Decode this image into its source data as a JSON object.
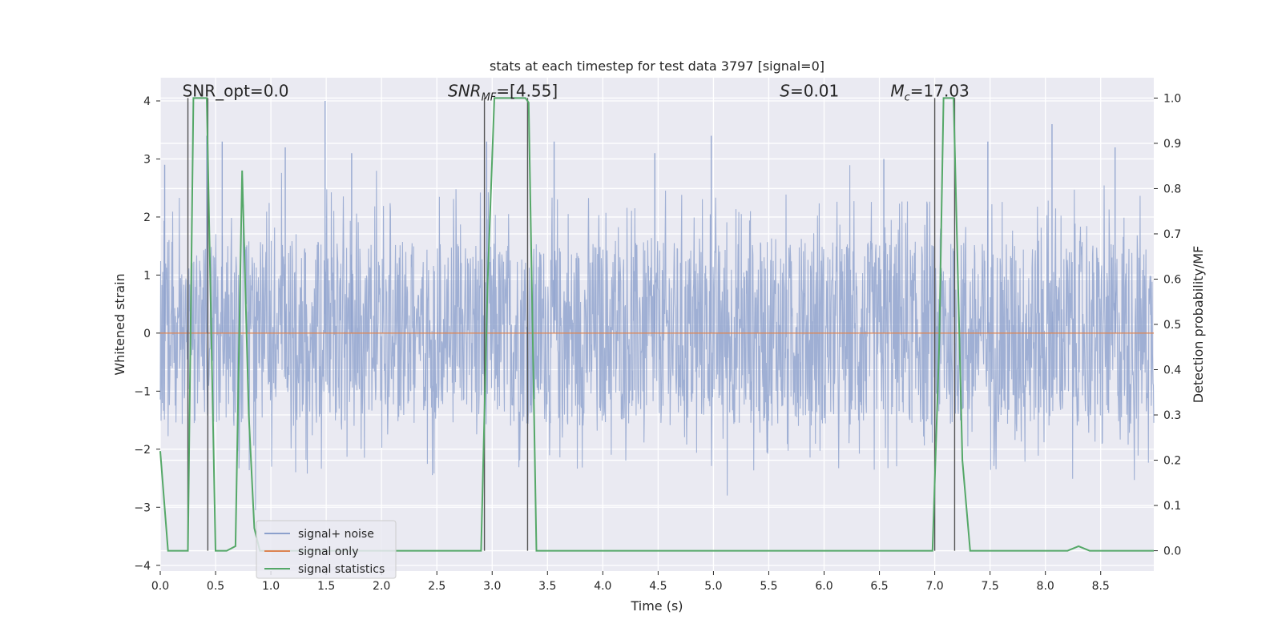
{
  "chart_data": {
    "type": "line",
    "title": "stats at each timestep for test data 3797 [signal=0]",
    "xlabel": "Time (s)",
    "ylabel_left": "Whitened strain",
    "ylabel_right": "Detection probability/MF",
    "xlim": [
      0.0,
      8.98
    ],
    "ylim_left": [
      -4.1,
      4.4
    ],
    "ylim_right": [
      -0.045,
      1.045
    ],
    "x_ticks": [
      0.0,
      0.5,
      1.0,
      1.5,
      2.0,
      2.5,
      3.0,
      3.5,
      4.0,
      4.5,
      5.0,
      5.5,
      6.0,
      6.5,
      7.0,
      7.5,
      8.0,
      8.5
    ],
    "x_tick_labels": [
      "0.0",
      "0.5",
      "1.0",
      "1.5",
      "2.0",
      "2.5",
      "3.0",
      "3.5",
      "4.0",
      "4.5",
      "5.0",
      "5.5",
      "6.0",
      "6.5",
      "7.0",
      "7.5",
      "8.0",
      "8.5"
    ],
    "y_left_ticks": [
      -4,
      -3,
      -2,
      -1,
      0,
      1,
      2,
      3,
      4
    ],
    "y_left_tick_labels": [
      "−4",
      "−3",
      "−2",
      "−1",
      "0",
      "1",
      "2",
      "3",
      "4"
    ],
    "y_right_ticks": [
      0.0,
      0.1,
      0.2,
      0.3,
      0.4,
      0.5,
      0.6,
      0.7,
      0.8,
      0.9,
      1.0
    ],
    "y_right_tick_labels": [
      "0.0",
      "0.1",
      "0.2",
      "0.3",
      "0.4",
      "0.5",
      "0.6",
      "0.7",
      "0.8",
      "0.9",
      "1.0"
    ],
    "grid": true,
    "legend_location": "lower-left",
    "series": [
      {
        "name": "signal+ noise",
        "color": "#8ca0cc",
        "axis": "left",
        "style": "noise band",
        "approx_peak_times": [
          0.04,
          0.42,
          0.56,
          1.13,
          1.49,
          1.73,
          2.95,
          3.56,
          4.47,
          4.98,
          6.54,
          7.48,
          8.06,
          8.63
        ],
        "approx_peak_values": [
          2.9,
          3.4,
          3.3,
          3.2,
          4.0,
          3.1,
          3.3,
          3.3,
          3.1,
          3.4,
          3.0,
          3.3,
          3.6,
          3.2
        ]
      },
      {
        "name": "signal only",
        "color": "#dd8452",
        "axis": "left",
        "x": [
          0.0,
          8.98
        ],
        "y": [
          0.0,
          0.0
        ]
      },
      {
        "name": "signal statistics",
        "color": "#55a868",
        "axis": "right",
        "x": [
          0.0,
          0.07,
          0.25,
          0.3,
          0.33,
          0.42,
          0.46,
          0.5,
          0.53,
          0.6,
          0.68,
          0.74,
          0.8,
          0.85,
          0.9,
          1.2,
          2.4,
          2.9,
          2.96,
          3.02,
          3.3,
          3.33,
          3.4,
          6.98,
          7.04,
          7.08,
          7.17,
          7.25,
          7.32,
          8.2,
          8.3,
          8.4,
          8.98
        ],
        "y": [
          0.22,
          0.0,
          0.0,
          1.0,
          1.0,
          1.0,
          0.5,
          0.0,
          0.0,
          0.0,
          0.01,
          0.84,
          0.3,
          0.05,
          0.0,
          0.0,
          0.0,
          0.0,
          0.6,
          1.0,
          1.0,
          0.99,
          0.0,
          0.0,
          0.45,
          1.0,
          1.0,
          0.2,
          0.0,
          0.0,
          0.01,
          0.0,
          0.0
        ]
      }
    ],
    "event_markers_x": [
      0.25,
      0.43,
      2.93,
      3.32,
      7.0,
      7.18
    ],
    "annotations": [
      {
        "id": "snr-opt",
        "text": "SNR_opt=0.0",
        "x": 0.2,
        "y_right": 1.0
      },
      {
        "id": "snr-mf",
        "prefix": "SNR",
        "sub": "MF",
        "suffix": "=[4.55]",
        "x": 2.6,
        "y_right": 1.0
      },
      {
        "id": "s",
        "prefix": "S",
        "suffix": "=0.01",
        "x": 5.6,
        "y_right": 1.0
      },
      {
        "id": "mc",
        "prefix": "M",
        "sub": "c",
        "suffix": "=17.03",
        "x": 6.6,
        "y_right": 1.0
      }
    ]
  }
}
